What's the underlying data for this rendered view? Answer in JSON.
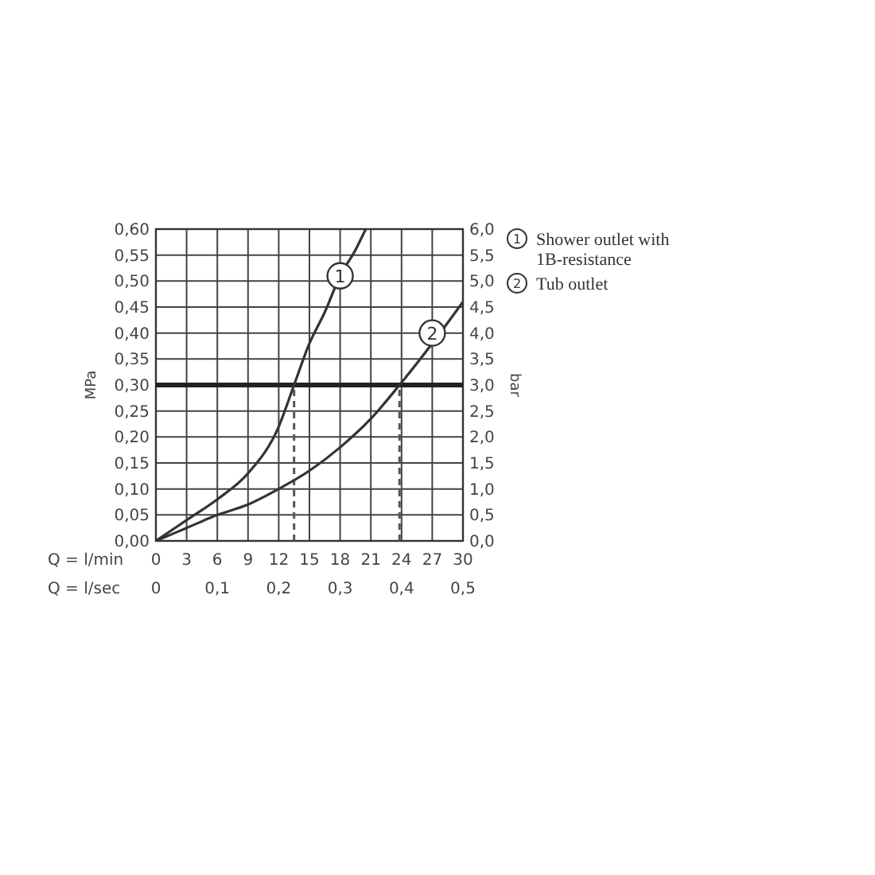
{
  "chart_data": {
    "type": "line",
    "xlabel": "Q = l/min",
    "x2label": "Q = l/sec",
    "ylabel": "MPa",
    "y2label": "bar",
    "xlim": [
      0,
      30
    ],
    "xticks": [
      0,
      3,
      6,
      9,
      12,
      15,
      18,
      21,
      24,
      27,
      30
    ],
    "x2lim": [
      0,
      0.5
    ],
    "x2ticks": [
      0,
      {
        "value": 0.1,
        "label": "0,1"
      },
      {
        "value": 0.2,
        "label": "0,2"
      },
      {
        "value": 0.3,
        "label": "0,3"
      },
      {
        "value": 0.4,
        "label": "0,4"
      },
      {
        "value": 0.5,
        "label": "0,5"
      }
    ],
    "ylim": [
      0,
      0.6
    ],
    "yticks": [
      {
        "value": 0,
        "label": "0,00"
      },
      {
        "value": 0.05,
        "label": "0,05"
      },
      {
        "value": 0.1,
        "label": "0,10"
      },
      {
        "value": 0.15,
        "label": "0,15"
      },
      {
        "value": 0.2,
        "label": "0,20"
      },
      {
        "value": 0.25,
        "label": "0,25"
      },
      {
        "value": 0.3,
        "label": "0,30"
      },
      {
        "value": 0.35,
        "label": "0,35"
      },
      {
        "value": 0.4,
        "label": "0,40"
      },
      {
        "value": 0.45,
        "label": "0,45"
      },
      {
        "value": 0.5,
        "label": "0,50"
      },
      {
        "value": 0.55,
        "label": "0,55"
      },
      {
        "value": 0.6,
        "label": "0,60"
      }
    ],
    "y2lim": [
      0,
      6
    ],
    "y2ticks": [
      {
        "value": 0,
        "label": "0,0"
      },
      {
        "value": 0.5,
        "label": "0,5"
      },
      {
        "value": 1,
        "label": "1,0"
      },
      {
        "value": 1.5,
        "label": "1,5"
      },
      {
        "value": 2,
        "label": "2,0"
      },
      {
        "value": 2.5,
        "label": "2,5"
      },
      {
        "value": 3,
        "label": "3,0"
      },
      {
        "value": 3.5,
        "label": "3,5"
      },
      {
        "value": 4,
        "label": "4,0"
      },
      {
        "value": 4.5,
        "label": "4,5"
      },
      {
        "value": 5,
        "label": "5,0"
      },
      {
        "value": 5.5,
        "label": "5,5"
      },
      {
        "value": 6,
        "label": "6,0"
      }
    ],
    "grid": true,
    "legend": "right",
    "line_style": "solid",
    "series": [
      {
        "name": "Shower outlet with 1B-resistance",
        "color": "#333333",
        "x": [
          0,
          3,
          6,
          9,
          12,
          13.5,
          15,
          16.5,
          18,
          19.5,
          20.5
        ],
        "values": [
          0,
          0.04,
          0.08,
          0.13,
          0.22,
          0.3,
          0.38,
          0.44,
          0.51,
          0.56,
          0.6
        ]
      },
      {
        "name": "Tub outlet",
        "color": "#333333",
        "x": [
          0,
          3,
          6,
          9,
          12,
          15,
          18,
          21,
          23.8,
          27,
          30
        ],
        "values": [
          0,
          0.025,
          0.05,
          0.07,
          0.1,
          0.135,
          0.18,
          0.235,
          0.3,
          0.38,
          0.46
        ]
      }
    ],
    "ref_lines": [
      {
        "axis": "y",
        "value": 0.3,
        "color": "#222222",
        "line_style": "solid"
      },
      {
        "axis": "x",
        "value": 13.5,
        "color": "#555555",
        "line_style": "dashed"
      },
      {
        "axis": "x",
        "value": 23.8,
        "color": "#555555",
        "line_style": "dashed"
      }
    ],
    "annotations": [
      {
        "text": "1",
        "x": 18,
        "y": 0.51
      },
      {
        "text": "2",
        "x": 27,
        "y": 0.4
      }
    ]
  }
}
